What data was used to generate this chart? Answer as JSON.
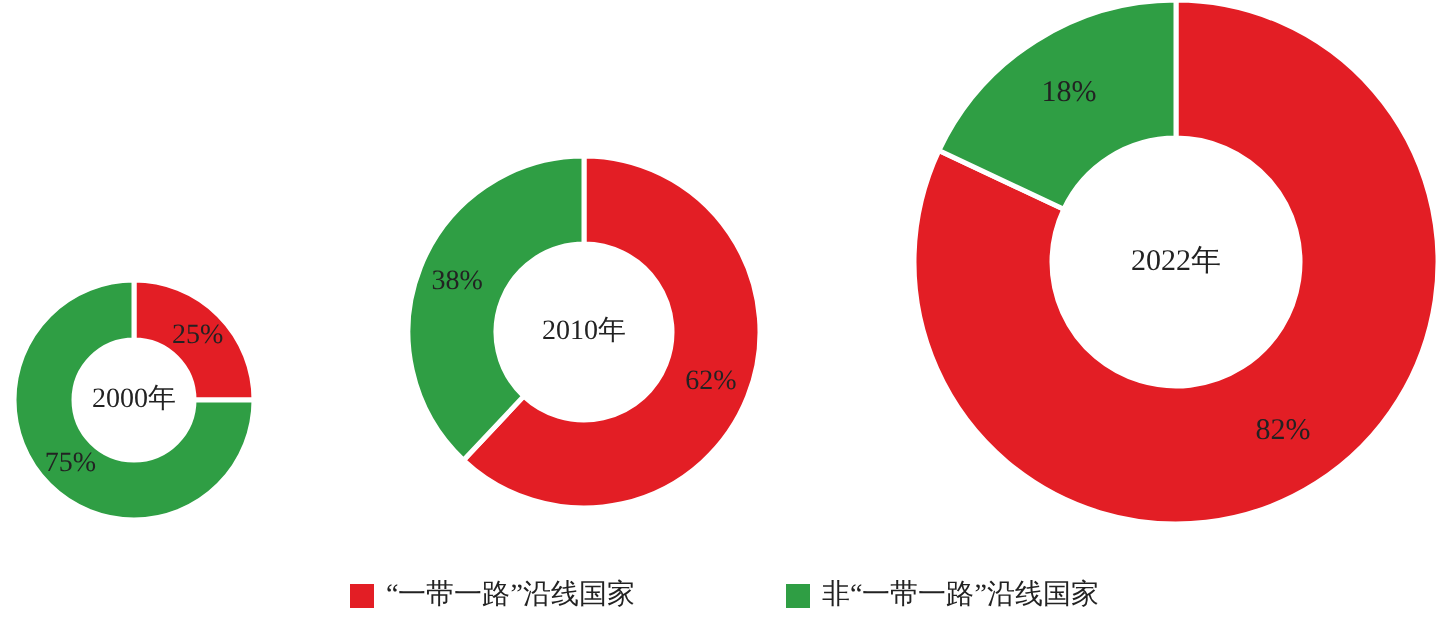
{
  "chart_data": [
    {
      "type": "donut",
      "title": "2000年",
      "categories": [
        "“一带一路”沿线国家",
        "非“一带一路”沿线国家"
      ],
      "values": [
        25,
        75
      ],
      "value_labels": [
        "25%",
        "75%"
      ],
      "colors": [
        "#e31e25",
        "#2f9e44"
      ],
      "legend": "bottom"
    },
    {
      "type": "donut",
      "title": "2010年",
      "categories": [
        null,
        null
      ],
      "values": [
        62,
        38
      ],
      "value_labels": [
        "62%",
        "38%"
      ],
      "colors": [
        "#e31e25",
        "#2f9e44"
      ]
    },
    {
      "type": "donut",
      "title": "2022年",
      "categories": [
        null,
        null
      ],
      "values": [
        82,
        18
      ],
      "value_labels": [
        "82%",
        "18%"
      ],
      "colors": [
        "#e31e25",
        "#2f9e44"
      ]
    }
  ]
}
